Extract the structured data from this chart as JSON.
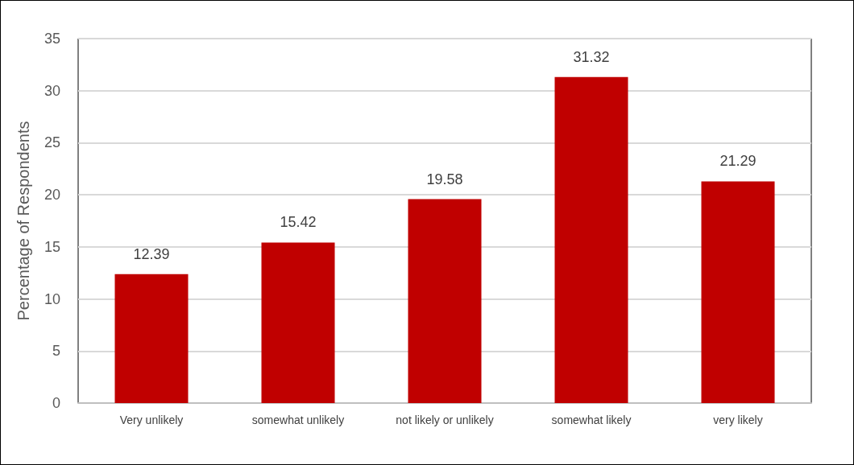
{
  "chart_data": {
    "type": "bar",
    "ylabel": "Percentage of Respondents",
    "categories": [
      "Very unlikely",
      "somewhat unlikely",
      "not likely or unlikely",
      "somewhat likely",
      "very likely"
    ],
    "values": [
      12.39,
      15.42,
      19.58,
      31.32,
      21.29
    ],
    "color": "#c00000",
    "ylim": [
      0,
      35
    ],
    "yticks": [
      0,
      5,
      10,
      15,
      20,
      25,
      30,
      35
    ],
    "grid": "y",
    "data_labels": true
  }
}
